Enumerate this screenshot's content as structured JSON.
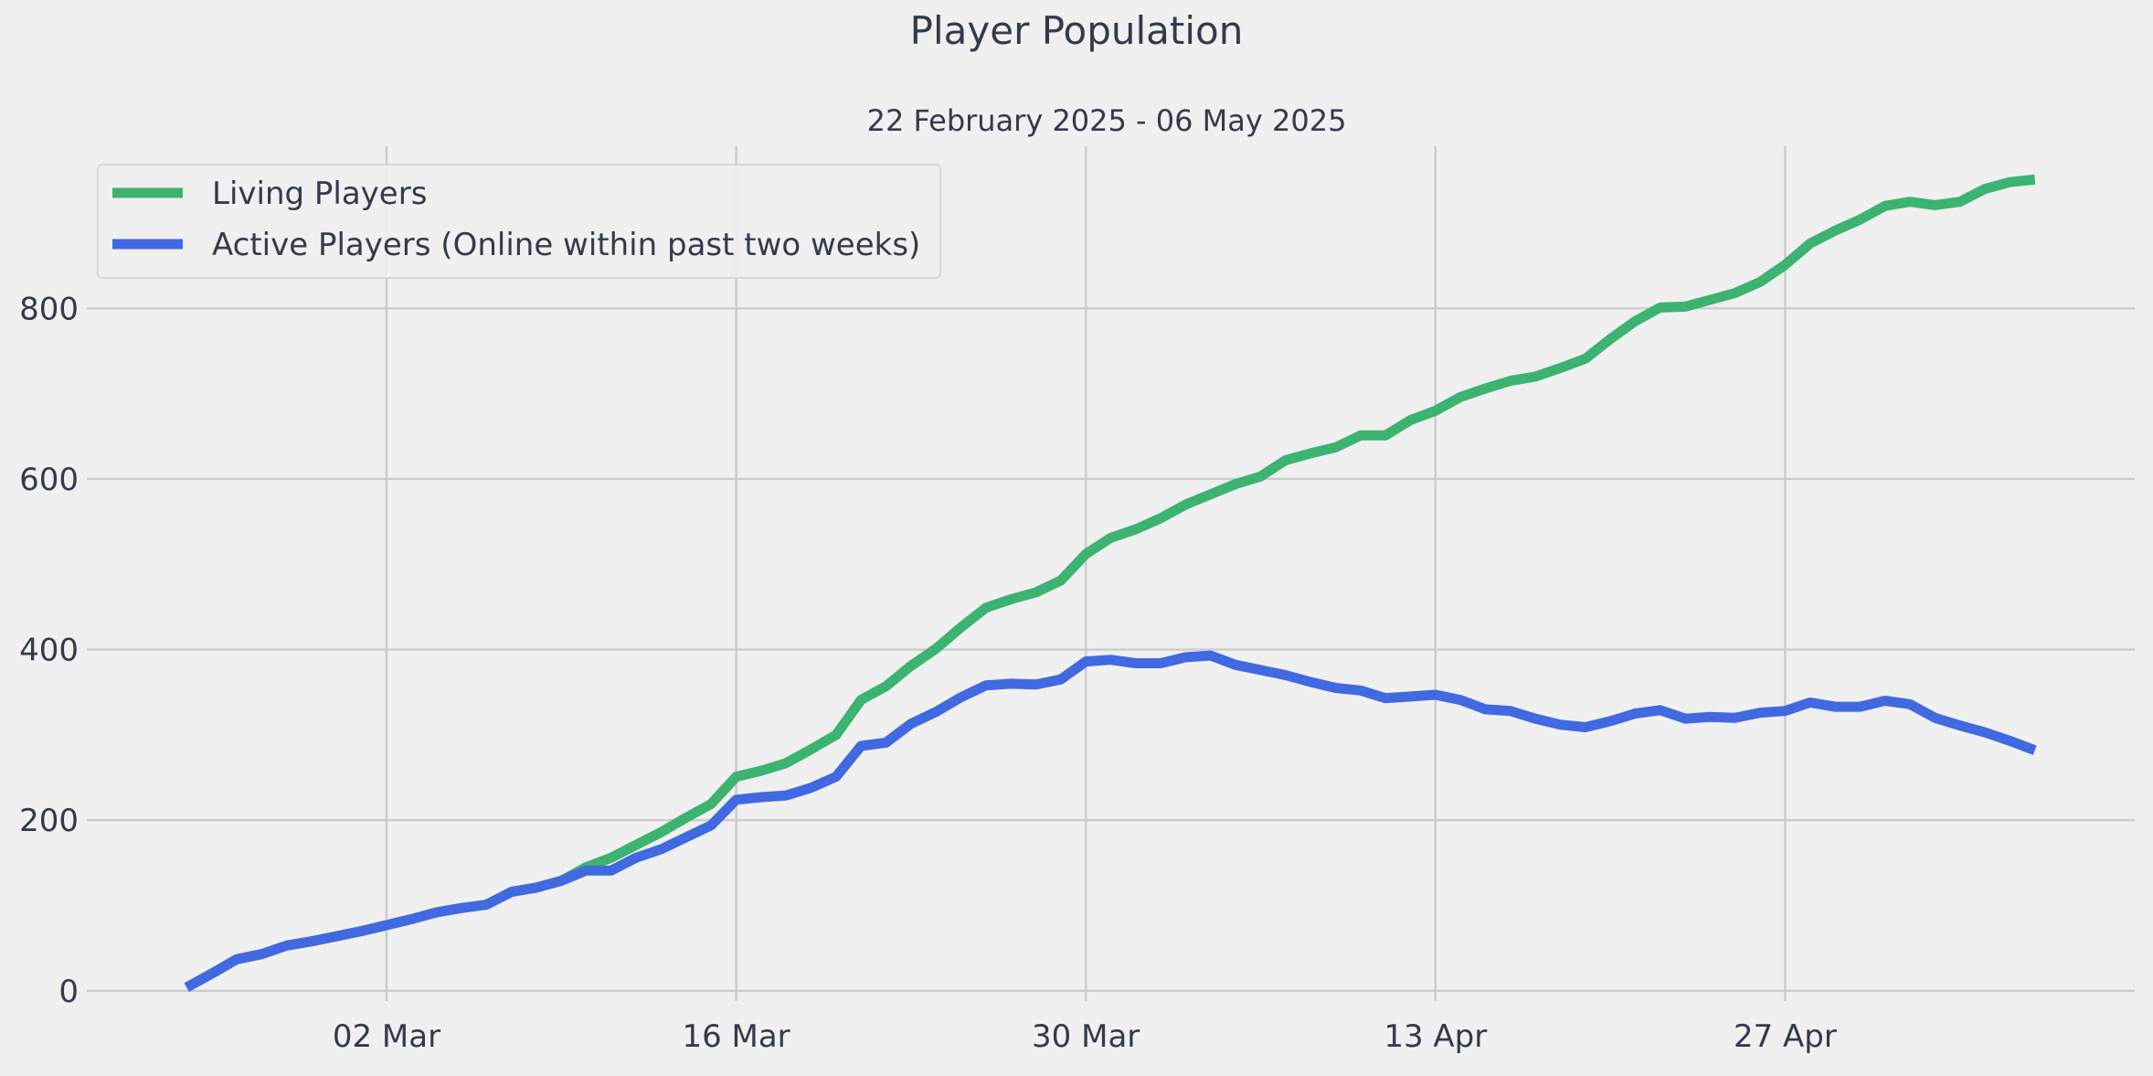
{
  "chart_data": {
    "type": "line",
    "title": "Player Population",
    "subtitle": "22 February 2025 - 06 May 2025",
    "xlabel": "",
    "ylabel": "",
    "x_start": "2025-02-22",
    "x_end": "2025-05-06",
    "xlim": [
      "2025-02-18",
      "2025-05-11"
    ],
    "ylim": [
      -12,
      990
    ],
    "y_ticks": [
      0,
      200,
      400,
      600,
      800
    ],
    "x_ticks": [
      {
        "date": "2025-03-02",
        "label": "02 Mar"
      },
      {
        "date": "2025-03-16",
        "label": "16 Mar"
      },
      {
        "date": "2025-03-30",
        "label": "30 Mar"
      },
      {
        "date": "2025-04-13",
        "label": "13 Apr"
      },
      {
        "date": "2025-04-27",
        "label": "27 Apr"
      }
    ],
    "grid": true,
    "legend_position": "top-left",
    "series": [
      {
        "name": "Living Players",
        "color": "#3cb371",
        "values": [
          4,
          20,
          37,
          43,
          53,
          58,
          64,
          70,
          77,
          84,
          92,
          97,
          101,
          116,
          121,
          129,
          145,
          156,
          171,
          186,
          203,
          219,
          251,
          258,
          267,
          283,
          300,
          341,
          357,
          381,
          401,
          426,
          449,
          459,
          467,
          481,
          512,
          531,
          541,
          554,
          570,
          582,
          594,
          603,
          622,
          630,
          637,
          651,
          651,
          669,
          680,
          696,
          706,
          715,
          720,
          730,
          741,
          764,
          785,
          801,
          802,
          810,
          818,
          831,
          851,
          876,
          891,
          904,
          920,
          925,
          921,
          925,
          940,
          948,
          951
        ]
      },
      {
        "name": "Active Players (Online within past two weeks)",
        "color": "#4169e1",
        "values": [
          4,
          20,
          37,
          43,
          53,
          58,
          64,
          70,
          77,
          84,
          92,
          97,
          101,
          116,
          121,
          129,
          141,
          141,
          156,
          166,
          180,
          194,
          224,
          227,
          229,
          238,
          251,
          287,
          291,
          313,
          327,
          344,
          358,
          360,
          359,
          365,
          386,
          388,
          384,
          384,
          391,
          393,
          382,
          376,
          370,
          362,
          355,
          352,
          343,
          345,
          347,
          341,
          330,
          328,
          319,
          312,
          309,
          316,
          325,
          329,
          319,
          321,
          320,
          326,
          328,
          338,
          333,
          333,
          340,
          336,
          320,
          311,
          303,
          293,
          282
        ]
      }
    ]
  }
}
